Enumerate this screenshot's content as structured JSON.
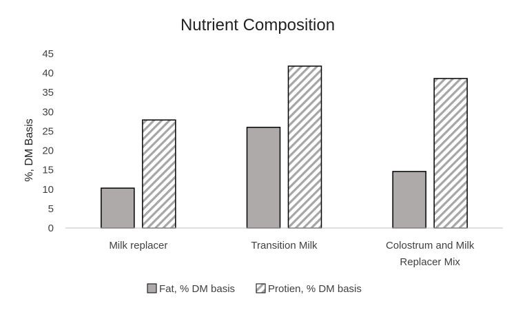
{
  "chart_data": {
    "type": "bar",
    "title": "Nutrient Composition",
    "xlabel": "",
    "ylabel": "%, DM Basis",
    "ylim": [
      0,
      45
    ],
    "yticks": [
      0,
      5,
      10,
      15,
      20,
      25,
      30,
      35,
      40,
      45
    ],
    "categories": [
      [
        "Milk replacer"
      ],
      [
        "Transition Milk"
      ],
      [
        "Colostrum and Milk",
        "Replacer Mix"
      ]
    ],
    "series": [
      {
        "name": "Fat, % DM basis",
        "values": [
          10.3,
          26.0,
          14.6
        ],
        "fill": "#aeaaaa",
        "pattern": "solid"
      },
      {
        "name": "Protien, % DM basis",
        "values": [
          27.9,
          41.8,
          38.6
        ],
        "fill": "#ffffff",
        "pattern": "diagonal-stripes"
      }
    ],
    "grid": false,
    "legend": "bottom"
  }
}
